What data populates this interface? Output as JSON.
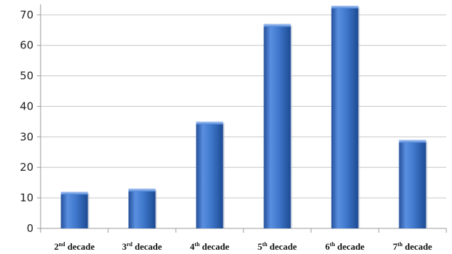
{
  "chart_data": {
    "type": "bar",
    "categories": [
      {
        "num": "2",
        "sup": "nd",
        "rest": " decade"
      },
      {
        "num": "3",
        "sup": "rd",
        "rest": " decade"
      },
      {
        "num": "4",
        "sup": "th",
        "rest": " decade"
      },
      {
        "num": "5",
        "sup": "th",
        "rest": " decade"
      },
      {
        "num": "6",
        "sup": "th",
        "rest": " decade"
      },
      {
        "num": "7",
        "sup": "th",
        "rest": " decade"
      }
    ],
    "values": [
      12,
      13,
      35,
      67,
      73,
      29
    ],
    "ylim": [
      0,
      73
    ],
    "yticks": [
      0,
      10,
      20,
      30,
      40,
      50,
      60,
      70
    ],
    "grid": true,
    "bar_color": "#3d74c8",
    "bar_color_light": "#6f9fe6",
    "bar_color_dark": "#1f4f9c",
    "grid_color": "#c6c6c6",
    "axis_color": "#9a9a9a"
  }
}
